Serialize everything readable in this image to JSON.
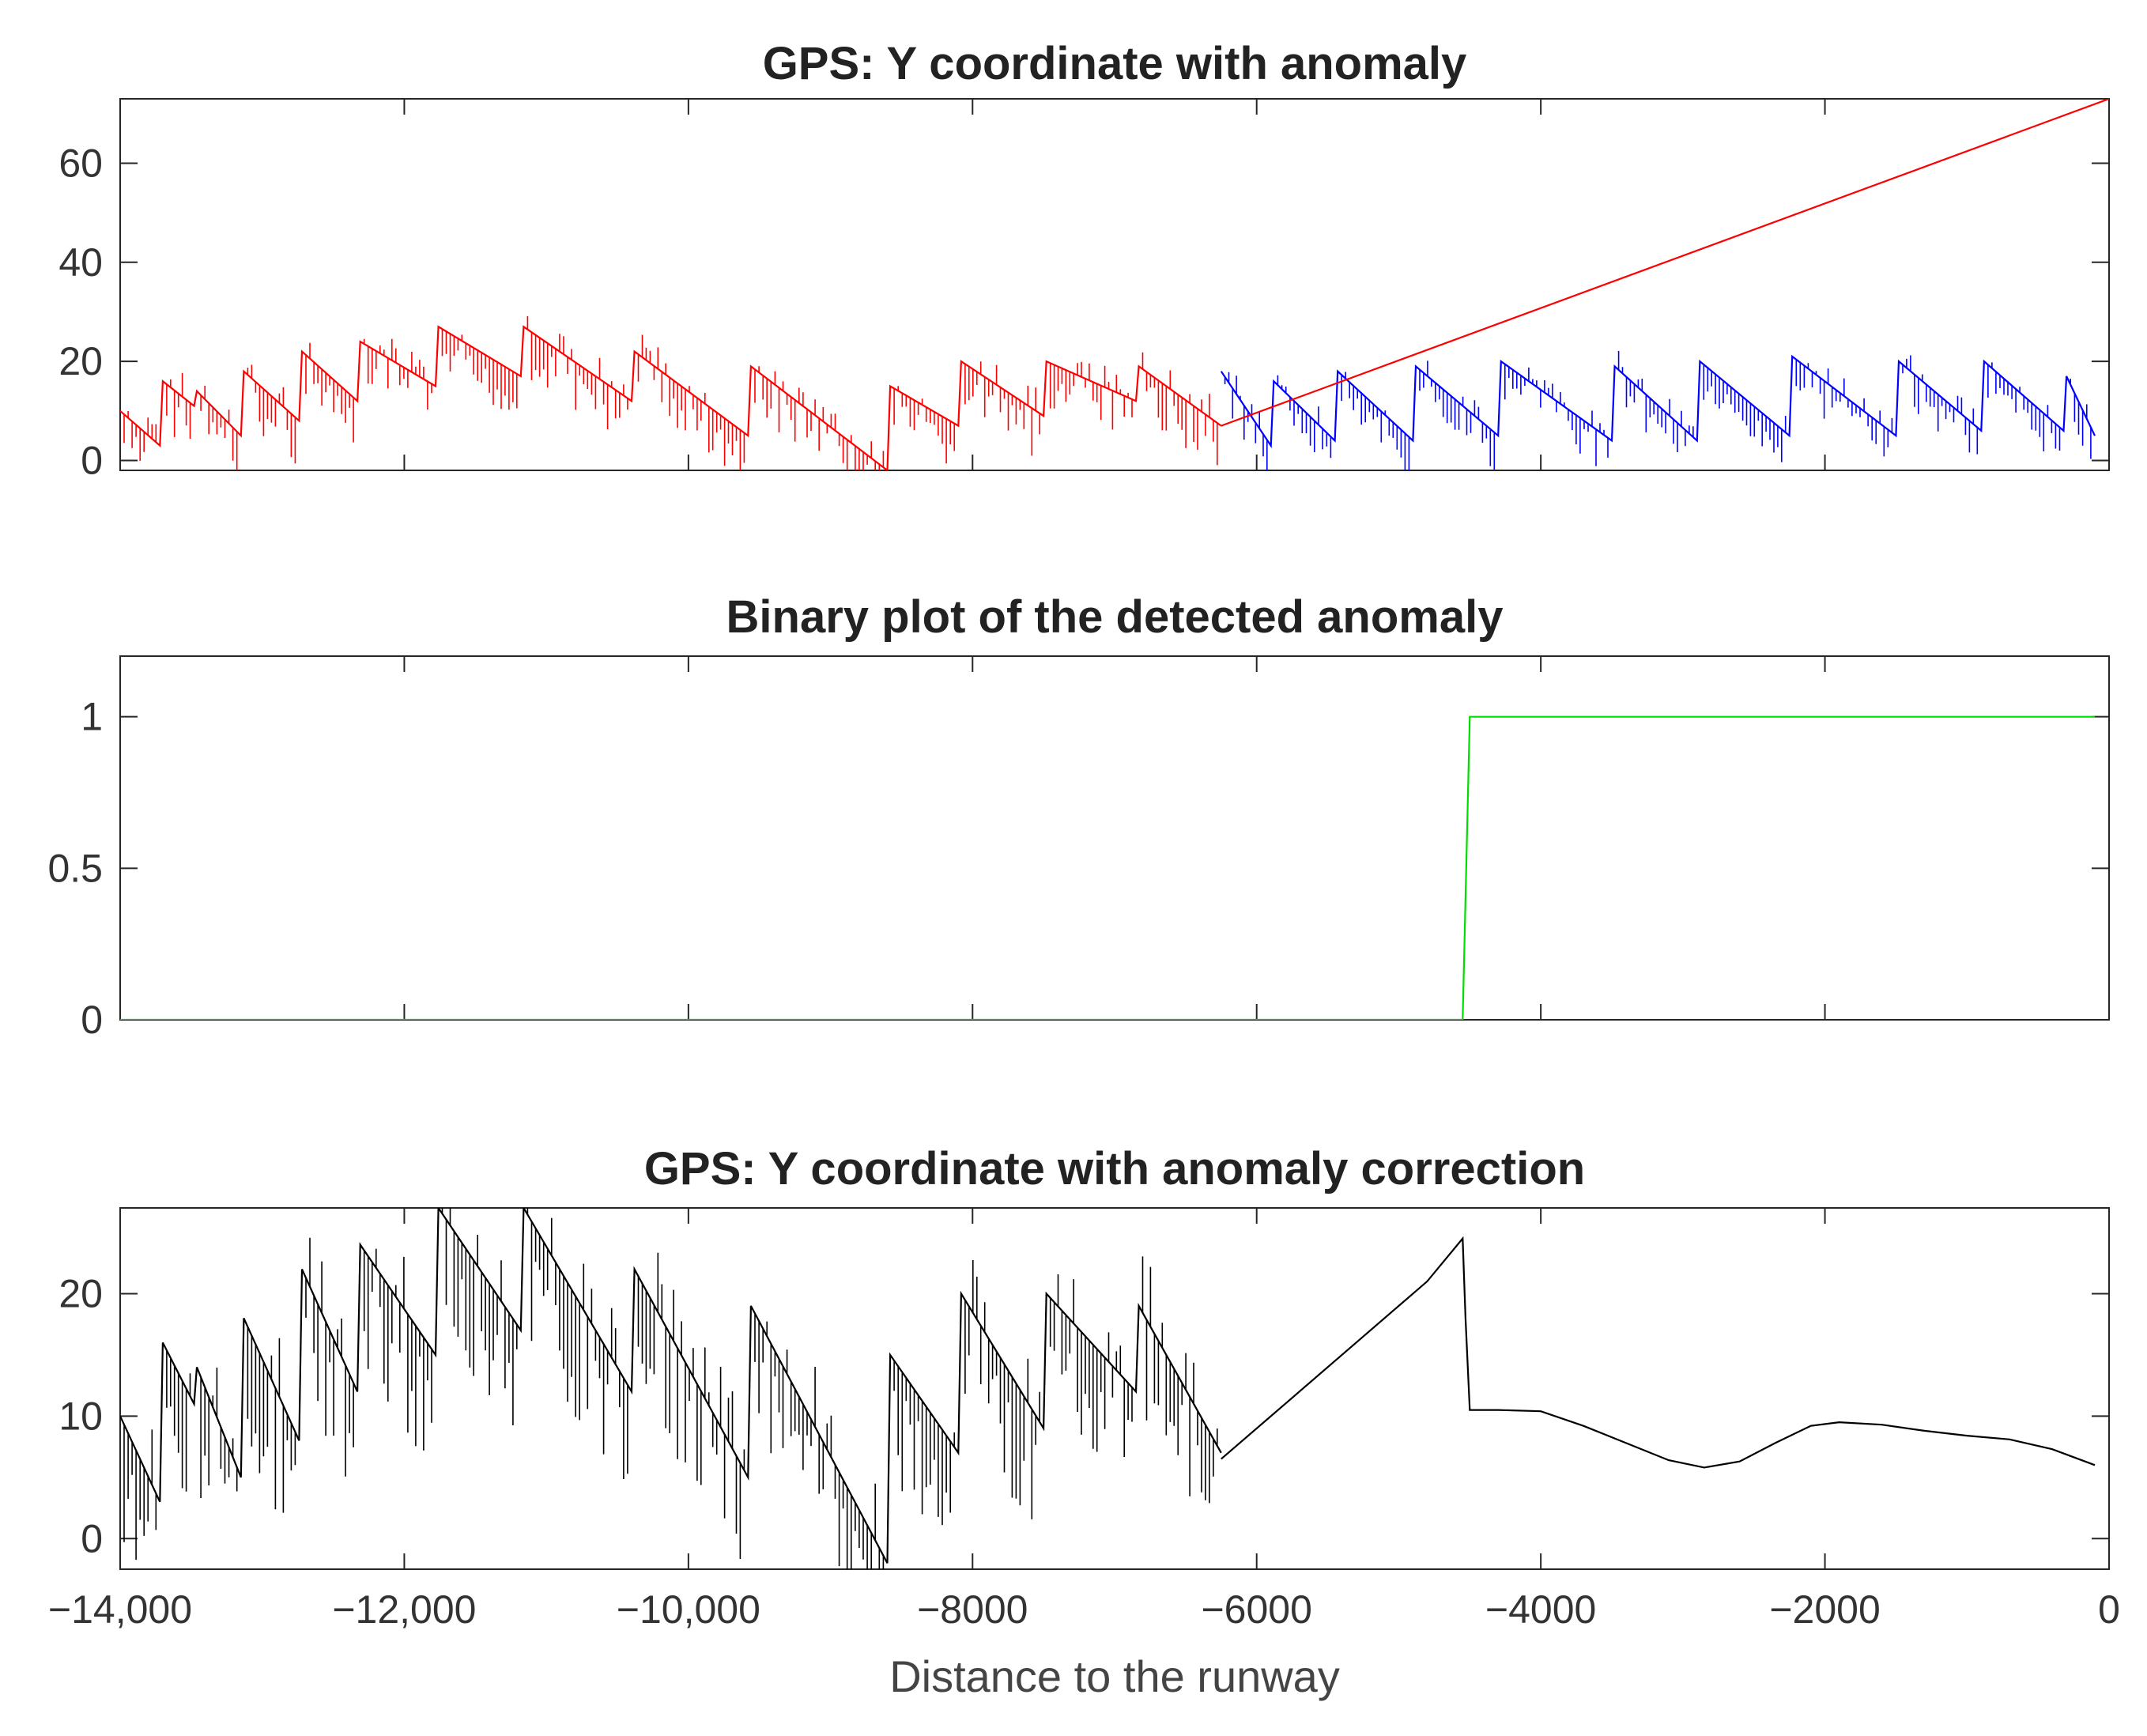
{
  "chart_data": [
    {
      "type": "line",
      "title": "GPS: Y coordinate with anomaly",
      "xlabel": "",
      "ylabel": "",
      "xlim": [
        -14000,
        0
      ],
      "ylim": [
        -2,
        73
      ],
      "yticks": [
        0,
        20,
        40,
        60
      ],
      "ytick_labels": [
        "0",
        "20",
        "40",
        "60"
      ],
      "grid": false,
      "series": [
        {
          "color": "#ff0000",
          "style": "zigzag-spikes",
          "x": [
            -14000,
            -13720,
            -13700,
            -13480,
            -13460,
            -13150,
            -13130,
            -12740,
            -12720,
            -12330,
            -12310,
            -11780,
            -11760,
            -11180,
            -11160,
            -10400,
            -10380,
            -9580,
            -9560,
            -8600,
            -8580,
            -8100,
            -8080,
            -7500,
            -7480,
            -6850,
            -6830,
            -6250
          ],
          "y": [
            10,
            3,
            16,
            11,
            14,
            5,
            18,
            8,
            22,
            12,
            24,
            15,
            27,
            17,
            27,
            12,
            22,
            5,
            19,
            -2,
            15,
            7,
            20,
            9,
            20,
            12,
            19,
            7
          ],
          "spike_depth": 9
        },
        {
          "color": "#0000ff",
          "style": "zigzag-spikes",
          "x": [
            -6250,
            -5900,
            -5880,
            -5450,
            -5430,
            -4900,
            -4880,
            -4300,
            -4280,
            -3500,
            -3480,
            -2900,
            -2880,
            -2250,
            -2230,
            -1500,
            -1480,
            -900,
            -880,
            -320,
            -300,
            -100
          ],
          "y": [
            18,
            3,
            16,
            4,
            18,
            4,
            19,
            5,
            20,
            4,
            19,
            4,
            20,
            5,
            21,
            5,
            20,
            6,
            20,
            6,
            17,
            5
          ],
          "spike_depth": 7
        },
        {
          "color": "#ff0000",
          "style": "line",
          "x": [
            -6250,
            0
          ],
          "y": [
            7,
            73
          ]
        }
      ]
    },
    {
      "type": "line",
      "title": "Binary plot of the detected anomaly",
      "xlabel": "",
      "ylabel": "",
      "xlim": [
        -14000,
        0
      ],
      "ylim": [
        0,
        1.2
      ],
      "yticks": [
        0,
        0.5,
        1
      ],
      "ytick_labels": [
        "0",
        "0.5",
        "1"
      ],
      "grid": false,
      "series": [
        {
          "color": "#00dd00",
          "style": "line",
          "x": [
            -14000,
            -4550,
            -4500,
            -100
          ],
          "y": [
            0,
            0,
            1,
            1
          ]
        }
      ]
    },
    {
      "type": "line",
      "title": "GPS: Y coordinate with anomaly correction",
      "xlabel": "Distance to the runway",
      "ylabel": "",
      "xlim": [
        -14000,
        0
      ],
      "ylim": [
        -2.5,
        27
      ],
      "yticks": [
        0,
        10,
        20
      ],
      "ytick_labels": [
        "0",
        "10",
        "20"
      ],
      "xticks": [
        -14000,
        -12000,
        -10000,
        -8000,
        -6000,
        -4000,
        -2000,
        0
      ],
      "xtick_labels": [
        "−14,000",
        "−12,000",
        "−10,000",
        "−8000",
        "−6000",
        "−4000",
        "−2000",
        "0"
      ],
      "grid": false,
      "series": [
        {
          "color": "#000000",
          "style": "zigzag-spikes",
          "x": [
            -14000,
            -13720,
            -13700,
            -13480,
            -13460,
            -13150,
            -13130,
            -12740,
            -12720,
            -12330,
            -12310,
            -11780,
            -11760,
            -11180,
            -11160,
            -10400,
            -10380,
            -9580,
            -9560,
            -8600,
            -8580,
            -8100,
            -8080,
            -7500,
            -7480,
            -6850,
            -6830,
            -6250
          ],
          "y": [
            10,
            3,
            16,
            11,
            14,
            5,
            18,
            8,
            22,
            12,
            24,
            15,
            27,
            17,
            27,
            12,
            22,
            5,
            19,
            -2,
            15,
            7,
            20,
            9,
            20,
            12,
            19,
            7
          ],
          "spike_depth": 9
        },
        {
          "color": "#000000",
          "style": "line",
          "x": [
            -6250,
            -5800,
            -5300,
            -4800,
            -4550,
            -4530,
            -4500,
            -4300,
            -4000,
            -3700,
            -3400,
            -3100,
            -2850,
            -2600,
            -2350,
            -2100,
            -1900,
            -1600,
            -1300,
            -1000,
            -700,
            -400,
            -100
          ],
          "y": [
            6.5,
            11,
            16,
            21,
            24.5,
            18,
            10.5,
            10.5,
            10.4,
            9.2,
            7.8,
            6.4,
            5.8,
            6.3,
            7.8,
            9.2,
            9.5,
            9.3,
            8.8,
            8.4,
            8.1,
            7.3,
            6
          ]
        }
      ]
    }
  ]
}
